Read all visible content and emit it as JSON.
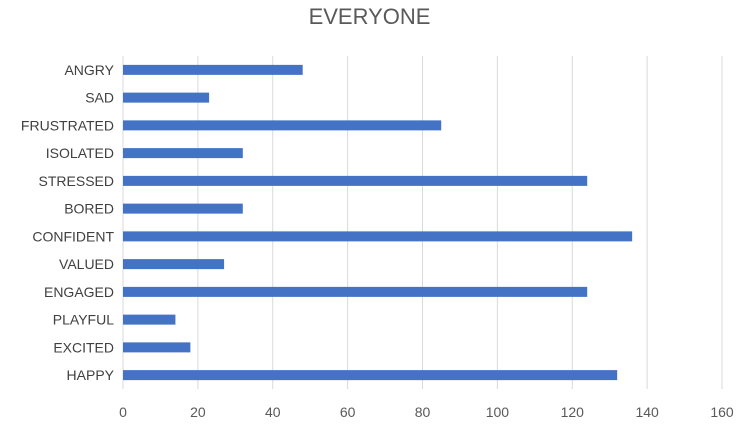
{
  "chart_data": {
    "type": "bar",
    "orientation": "horizontal",
    "title": "EVERYONE",
    "xlabel": "",
    "ylabel": "",
    "categories": [
      "ANGRY",
      "SAD",
      "FRUSTRATED",
      "ISOLATED",
      "STRESSED",
      "BORED",
      "CONFIDENT",
      "VALUED",
      "ENGAGED",
      "PLAYFUL",
      "EXCITED",
      "HAPPY"
    ],
    "values": [
      48,
      23,
      85,
      32,
      124,
      32,
      136,
      27,
      124,
      14,
      18,
      132
    ],
    "xlim": [
      0,
      160
    ],
    "xticks": [
      0,
      20,
      40,
      60,
      80,
      100,
      120,
      140,
      160
    ],
    "grid": "vertical",
    "legend": "none",
    "bar_color": "#4472C4",
    "grid_color": "#D9D9D9"
  }
}
